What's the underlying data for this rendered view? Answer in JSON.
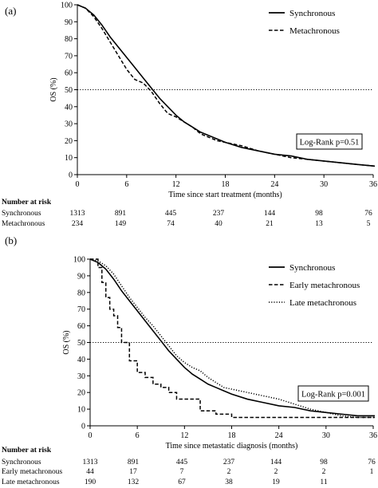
{
  "chart_data": [
    {
      "type": "line",
      "panel_label": "(a)",
      "xlabel": "Time since start treatment (months)",
      "ylabel": "OS (%)",
      "xlim": [
        0,
        36
      ],
      "ylim": [
        0,
        100
      ],
      "xticks": [
        0,
        6,
        12,
        18,
        24,
        30,
        36
      ],
      "yticks": [
        0,
        10,
        20,
        30,
        40,
        50,
        60,
        70,
        80,
        90,
        100
      ],
      "reference_line": {
        "y": 50,
        "style": "dotted"
      },
      "legend_position": "top-right",
      "annotation": "Log-Rank p=0.51",
      "series": [
        {
          "name": "Synchronous",
          "style": "solid",
          "x": [
            0,
            1,
            2,
            3,
            4,
            5,
            6,
            7,
            8,
            9,
            10,
            11,
            12,
            13,
            14,
            15,
            16,
            17,
            18,
            20,
            22,
            24,
            26,
            28,
            30,
            32,
            34,
            36.5
          ],
          "y": [
            100,
            98,
            94,
            88,
            81,
            75,
            69,
            63,
            57,
            51,
            45,
            40,
            35,
            31,
            28,
            25,
            23,
            21,
            19,
            16,
            14,
            12,
            11,
            9,
            8,
            7,
            6,
            5
          ]
        },
        {
          "name": "Metachronous",
          "style": "dashed",
          "x": [
            0,
            1,
            2,
            3,
            4,
            5,
            6,
            7,
            8,
            9,
            10,
            11,
            12,
            13,
            14,
            15,
            16,
            17,
            18,
            20,
            22,
            24,
            26,
            28,
            30,
            32,
            34,
            36.5
          ],
          "y": [
            100,
            98,
            93,
            86,
            78,
            70,
            62,
            56,
            54,
            49,
            42,
            36,
            34,
            31,
            28,
            24,
            22,
            20,
            19,
            17,
            14,
            12,
            10,
            9,
            8,
            7,
            6,
            5
          ]
        }
      ],
      "risk_table": {
        "title": "Number at risk",
        "times": [
          0,
          6,
          12,
          18,
          24,
          30,
          36
        ],
        "rows": [
          {
            "label": "Synchronous",
            "values": [
              "1313",
              "891",
              "445",
              "237",
              "144",
              "98",
              "76"
            ]
          },
          {
            "label": "Metachronous",
            "values": [
              "234",
              "149",
              "74",
              "40",
              "21",
              "13",
              "5"
            ]
          }
        ]
      }
    },
    {
      "type": "line",
      "panel_label": "(b)",
      "xlabel": "Time since metastatic diagnosis (months)",
      "ylabel": "OS (%)",
      "xlim": [
        0,
        36
      ],
      "ylim": [
        0,
        100
      ],
      "xticks": [
        0,
        6,
        12,
        18,
        24,
        30,
        36
      ],
      "yticks": [
        0,
        10,
        20,
        30,
        40,
        50,
        60,
        70,
        80,
        90,
        100
      ],
      "reference_line": {
        "y": 50,
        "style": "dotted"
      },
      "legend_position": "top-right",
      "annotation": "Log-Rank p=0.001",
      "series": [
        {
          "name": "Synchronous",
          "style": "solid",
          "x": [
            0,
            1,
            2,
            3,
            4,
            5,
            6,
            7,
            8,
            9,
            10,
            11,
            12,
            13,
            14,
            15,
            16,
            17,
            18,
            20,
            22,
            24,
            26,
            28,
            30,
            32,
            34,
            36.5
          ],
          "y": [
            100,
            98,
            94,
            88,
            81,
            75,
            69,
            63,
            57,
            51,
            45,
            40,
            35,
            31,
            28,
            25,
            23,
            21,
            19,
            16,
            14,
            12,
            11,
            9,
            8,
            7,
            6,
            6
          ]
        },
        {
          "name": "Early metachronous",
          "style": "dashed",
          "step": true,
          "x": [
            0,
            1,
            1.5,
            2,
            2.5,
            3,
            3.5,
            4,
            5,
            6,
            7,
            8,
            9,
            10,
            11,
            12,
            14,
            16,
            18,
            20,
            36.5
          ],
          "y": [
            100,
            95,
            86,
            77,
            70,
            66,
            59,
            50,
            39,
            32,
            29,
            25,
            23,
            20,
            16,
            16,
            9,
            7,
            5,
            5,
            5
          ]
        },
        {
          "name": "Late metachronous",
          "style": "dotted",
          "x": [
            0,
            1,
            2,
            3,
            4,
            5,
            6,
            7,
            8,
            9,
            10,
            11,
            12,
            13,
            14,
            15,
            16,
            17,
            18,
            20,
            22,
            24,
            26,
            28,
            30,
            32,
            34,
            36.5
          ],
          "y": [
            100,
            99,
            96,
            91,
            84,
            77,
            71,
            65,
            60,
            54,
            48,
            42,
            38,
            35,
            33,
            29,
            26,
            23,
            22,
            20,
            18,
            16,
            13,
            10,
            8,
            6,
            5,
            5
          ]
        }
      ],
      "risk_table": {
        "title": "Number at risk",
        "times": [
          0,
          6,
          12,
          18,
          24,
          30,
          36
        ],
        "rows": [
          {
            "label": "Synchronous",
            "values": [
              "1313",
              "891",
              "445",
              "237",
              "144",
              "98",
              "76"
            ]
          },
          {
            "label": "Early metachronous",
            "values": [
              "44",
              "17",
              "7",
              "2",
              "2",
              "2",
              "1"
            ]
          },
          {
            "label": "Late metachronous",
            "values": [
              "190",
              "132",
              "67",
              "38",
              "19",
              "11",
              ""
            ]
          }
        ]
      }
    }
  ]
}
